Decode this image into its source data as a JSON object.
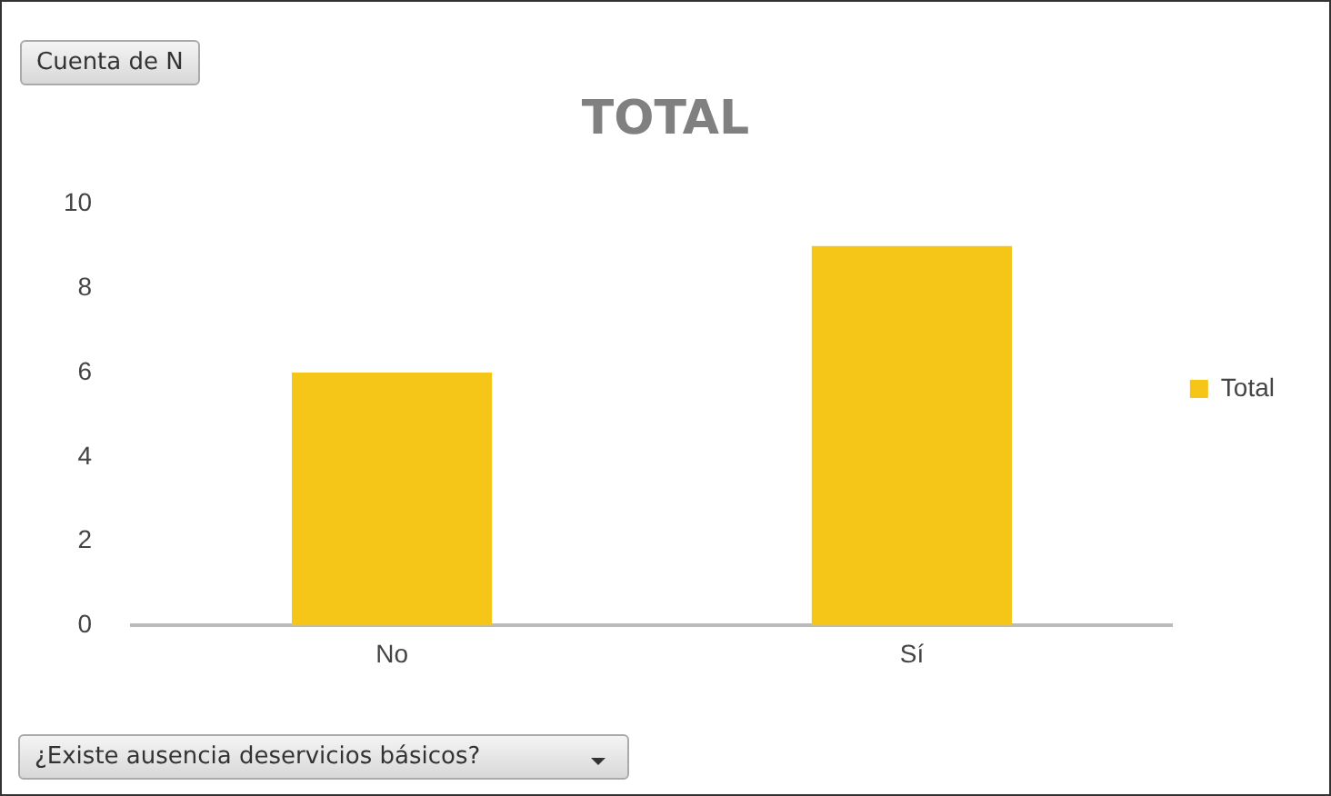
{
  "chart_data": {
    "type": "bar",
    "title": "TOTAL",
    "categories": [
      "No",
      "Sí"
    ],
    "series": [
      {
        "name": "Total",
        "color": "#f5c518",
        "values": [
          6,
          9
        ]
      }
    ],
    "ylim": [
      0,
      10
    ],
    "yticks": [
      0,
      2,
      4,
      6,
      8,
      10
    ],
    "grid": false,
    "legend": "right",
    "annotations": [
      "Cuenta de N",
      "¿Existe ausencia deservicios básicos?"
    ]
  }
}
